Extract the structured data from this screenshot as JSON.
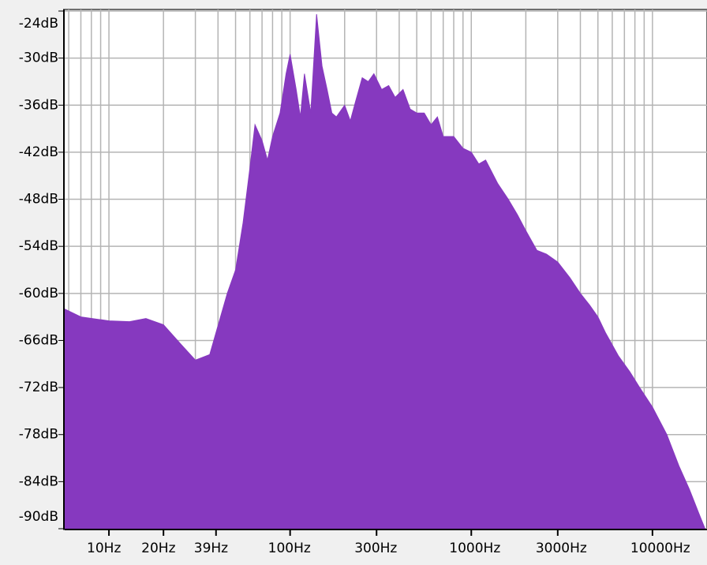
{
  "chart_data": {
    "type": "area",
    "x": [
      5.7,
      7,
      10,
      13,
      16,
      20,
      25,
      30,
      36,
      39,
      45,
      50,
      55,
      60,
      64,
      70,
      75,
      80,
      88,
      95,
      100,
      108,
      114,
      120,
      130,
      140,
      150,
      160,
      170,
      180,
      200,
      215,
      230,
      250,
      270,
      290,
      320,
      350,
      380,
      420,
      460,
      500,
      550,
      600,
      650,
      700,
      800,
      900,
      1000,
      1100,
      1200,
      1400,
      1600,
      1800,
      2000,
      2300,
      2600,
      3000,
      3500,
      4000,
      4500,
      5000,
      5500,
      6500,
      7500,
      8500,
      10000,
      12000,
      14000,
      16000,
      18000,
      19500
    ],
    "series": [
      {
        "color": "#8639bf",
        "values": [
          -62,
          -63,
          -63.5,
          -63.6,
          -63.2,
          -64,
          -66.5,
          -68.5,
          -67.8,
          -65,
          -60,
          -57,
          -51,
          -44,
          -38.5,
          -40.5,
          -43,
          -40,
          -37,
          -32,
          -29.5,
          -34,
          -37.5,
          -32,
          -37,
          -24.4,
          -31,
          -34,
          -37,
          -37.5,
          -36,
          -38,
          -35.5,
          -32.5,
          -33,
          -32,
          -34,
          -33.5,
          -35,
          -34,
          -36.5,
          -37,
          -37,
          -38.5,
          -37.5,
          -40,
          -40,
          -41.5,
          -42,
          -43.5,
          -43,
          -46,
          -48,
          -50,
          -52,
          -54.5,
          -55,
          -56,
          -58,
          -60,
          -61.5,
          -63,
          -65,
          -68,
          -70,
          -72,
          -74.5,
          -78,
          -82,
          -85,
          -88,
          -90
        ]
      }
    ],
    "log_x": true,
    "xlim": [
      5.7,
      20000
    ],
    "ylim": [
      -90,
      -24
    ],
    "xticks": [
      {
        "value": 10,
        "label": "10Hz"
      },
      {
        "value": 20,
        "label": "20Hz"
      },
      {
        "value": 39,
        "label": "39Hz"
      },
      {
        "value": 100,
        "label": "100Hz"
      },
      {
        "value": 300,
        "label": "300Hz"
      },
      {
        "value": 1000,
        "label": "1000Hz"
      },
      {
        "value": 3000,
        "label": "3000Hz"
      },
      {
        "value": 10000,
        "label": "10000Hz"
      }
    ],
    "xgrid": [
      6,
      7,
      8,
      9,
      10,
      20,
      30,
      40,
      50,
      60,
      70,
      80,
      90,
      100,
      200,
      300,
      400,
      500,
      600,
      700,
      800,
      900,
      1000,
      2000,
      3000,
      4000,
      5000,
      6000,
      7000,
      8000,
      9000,
      10000
    ],
    "yticks": [
      {
        "value": -24,
        "label": "-24dB"
      },
      {
        "value": -30,
        "label": "-30dB"
      },
      {
        "value": -36,
        "label": "-36dB"
      },
      {
        "value": -42,
        "label": "-42dB"
      },
      {
        "value": -48,
        "label": "-48dB"
      },
      {
        "value": -54,
        "label": "-54dB"
      },
      {
        "value": -60,
        "label": "-60dB"
      },
      {
        "value": -66,
        "label": "-66dB"
      },
      {
        "value": -72,
        "label": "-72dB"
      },
      {
        "value": -78,
        "label": "-78dB"
      },
      {
        "value": -84,
        "label": "-84dB"
      },
      {
        "value": -90,
        "label": "-90dB"
      }
    ],
    "grid": true
  }
}
